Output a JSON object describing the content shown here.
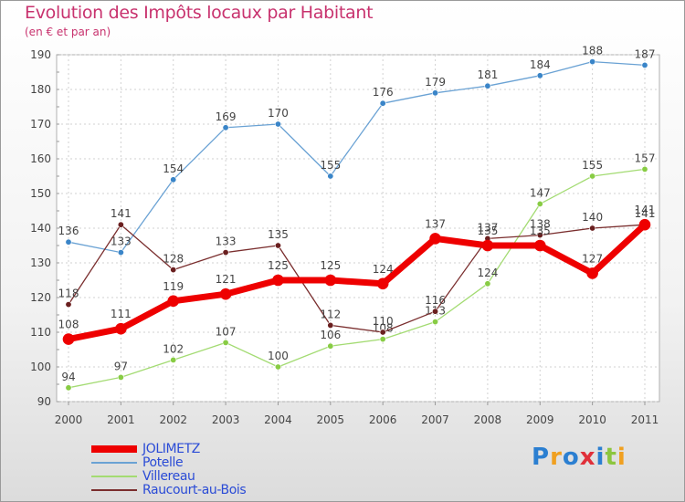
{
  "header": {
    "title": "Evolution des Impôts locaux par Habitant",
    "subtitle": "(en € et par an)"
  },
  "logo": {
    "text": "Proxiti",
    "colors": [
      "#2b7fd1",
      "#f0a020",
      "#2b7fd1",
      "#e0303a",
      "#2b7fd1",
      "#8cc63f",
      "#f0a020"
    ]
  },
  "chart_data": {
    "type": "line",
    "title": "Evolution des Impôts locaux par Habitant",
    "subtitle": "(en € et par an)",
    "categories": [
      "2000",
      "2001",
      "2002",
      "2003",
      "2004",
      "2005",
      "2006",
      "2007",
      "2008",
      "2009",
      "2010",
      "2011"
    ],
    "ylim": [
      90,
      190
    ],
    "yticks": [
      90,
      100,
      110,
      120,
      130,
      140,
      150,
      160,
      170,
      180,
      190
    ],
    "grid": true,
    "legend_position": "bottom-left",
    "series": [
      {
        "name": "Potelle",
        "color": "#6aa2d4",
        "marker": "#3a85c8",
        "width": 1.3,
        "markerR": 3.2,
        "values": [
          136,
          133,
          154,
          169,
          170,
          155,
          176,
          179,
          181,
          184,
          188,
          187
        ]
      },
      {
        "name": "Villereau",
        "color": "#a3db72",
        "marker": "#88cc44",
        "width": 1.3,
        "markerR": 3.2,
        "values": [
          94,
          97,
          102,
          107,
          100,
          106,
          108,
          113,
          124,
          147,
          155,
          157
        ]
      },
      {
        "name": "Raucourt-au-Bois",
        "color": "#7a2e2e",
        "marker": "#6a1f1f",
        "width": 1.3,
        "markerR": 3.2,
        "values": [
          118,
          141,
          128,
          133,
          135,
          112,
          110,
          116,
          137,
          138,
          140,
          141
        ]
      },
      {
        "name": "JOLIMETZ",
        "color": "#ee0000",
        "marker": "#ee0000",
        "width": 7,
        "markerR": 6,
        "values": [
          108,
          111,
          119,
          121,
          125,
          125,
          124,
          137,
          135,
          135,
          127,
          141
        ]
      }
    ]
  }
}
